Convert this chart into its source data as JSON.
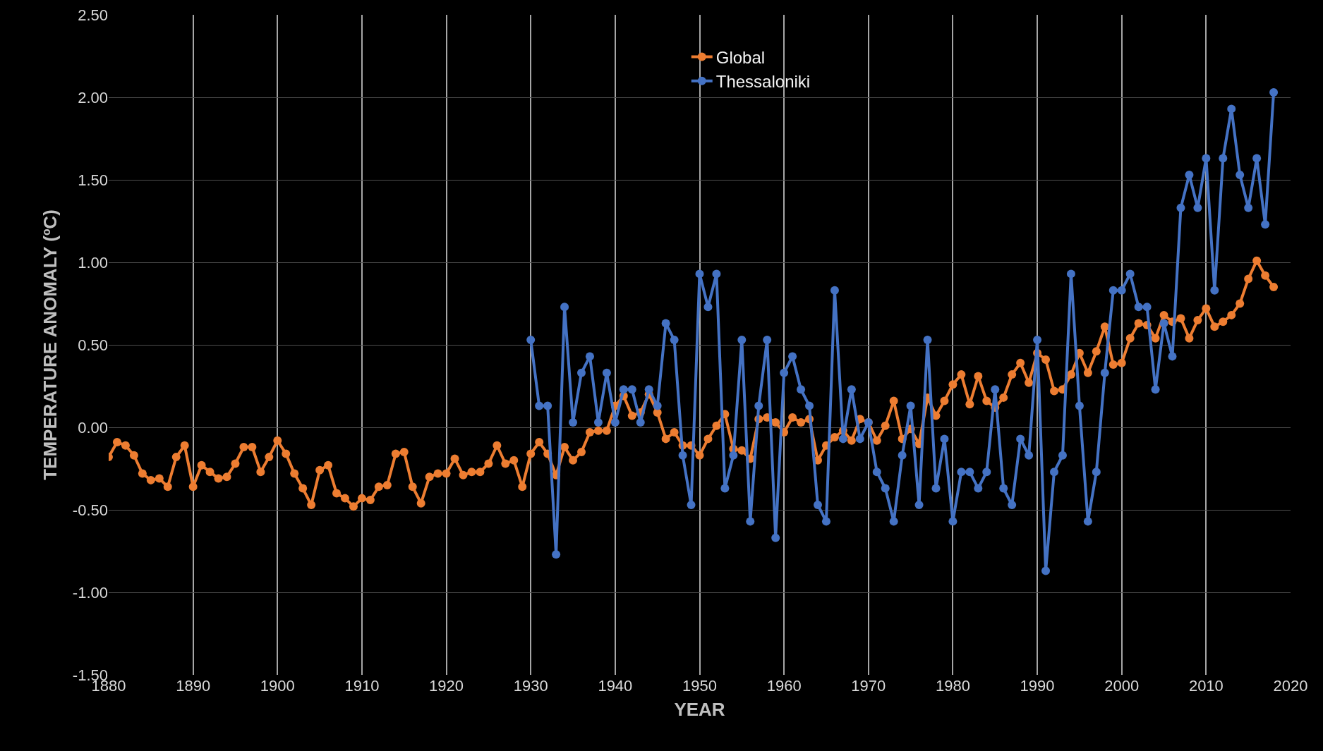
{
  "chart_data": {
    "type": "line",
    "xlabel": "YEAR",
    "ylabel": "TEMPERATURE ANOMALY (ºC)",
    "xlim": [
      1880,
      2020
    ],
    "xticks": [
      1880,
      1890,
      1900,
      1910,
      1920,
      1930,
      1940,
      1950,
      1960,
      1970,
      1980,
      1990,
      2000,
      2010,
      2020
    ],
    "ylim": [
      -1.5,
      2.5
    ],
    "yticks": [
      {
        "value": -1.5,
        "label": "-1.50"
      },
      {
        "value": -1,
        "label": "-1.00"
      },
      {
        "value": -0.5,
        "label": "-0.50"
      },
      {
        "value": 0,
        "label": "0.00"
      },
      {
        "value": 0.5,
        "label": "0.50"
      },
      {
        "value": 1,
        "label": "1.00"
      },
      {
        "value": 1.5,
        "label": "1.50"
      },
      {
        "value": 2,
        "label": "2.00"
      },
      {
        "value": 2.5,
        "label": "2.50"
      }
    ],
    "grid": true,
    "legend": "top",
    "marker": "circle",
    "line_style": "solid",
    "series": [
      {
        "name": "Global",
        "color": "#ed7d31",
        "x": [
          1880,
          1881,
          1882,
          1883,
          1884,
          1885,
          1886,
          1887,
          1888,
          1889,
          1890,
          1891,
          1892,
          1893,
          1894,
          1895,
          1896,
          1897,
          1898,
          1899,
          1900,
          1901,
          1902,
          1903,
          1904,
          1905,
          1906,
          1907,
          1908,
          1909,
          1910,
          1911,
          1912,
          1913,
          1914,
          1915,
          1916,
          1917,
          1918,
          1919,
          1920,
          1921,
          1922,
          1923,
          1924,
          1925,
          1926,
          1927,
          1928,
          1929,
          1930,
          1931,
          1932,
          1933,
          1934,
          1935,
          1936,
          1937,
          1938,
          1939,
          1940,
          1941,
          1942,
          1943,
          1944,
          1945,
          1946,
          1947,
          1948,
          1949,
          1950,
          1951,
          1952,
          1953,
          1954,
          1955,
          1956,
          1957,
          1958,
          1959,
          1960,
          1961,
          1962,
          1963,
          1964,
          1965,
          1966,
          1967,
          1968,
          1969,
          1970,
          1971,
          1972,
          1973,
          1974,
          1975,
          1976,
          1977,
          1978,
          1979,
          1980,
          1981,
          1982,
          1983,
          1984,
          1985,
          1986,
          1987,
          1988,
          1989,
          1990,
          1991,
          1992,
          1993,
          1994,
          1995,
          1996,
          1997,
          1998,
          1999,
          2000,
          2001,
          2002,
          2003,
          2004,
          2005,
          2006,
          2007,
          2008,
          2009,
          2010,
          2011,
          2012,
          2013,
          2014,
          2015,
          2016,
          2017,
          2018
        ],
        "values": [
          -0.18,
          -0.09,
          -0.11,
          -0.17,
          -0.28,
          -0.32,
          -0.31,
          -0.36,
          -0.18,
          -0.11,
          -0.36,
          -0.23,
          -0.27,
          -0.31,
          -0.3,
          -0.22,
          -0.12,
          -0.12,
          -0.27,
          -0.18,
          -0.08,
          -0.16,
          -0.28,
          -0.37,
          -0.47,
          -0.26,
          -0.23,
          -0.4,
          -0.43,
          -0.48,
          -0.43,
          -0.44,
          -0.36,
          -0.35,
          -0.16,
          -0.15,
          -0.36,
          -0.46,
          -0.3,
          -0.28,
          -0.28,
          -0.19,
          -0.29,
          -0.27,
          -0.27,
          -0.22,
          -0.11,
          -0.22,
          -0.2,
          -0.36,
          -0.16,
          -0.09,
          -0.16,
          -0.29,
          -0.12,
          -0.2,
          -0.15,
          -0.03,
          -0.02,
          -0.02,
          0.13,
          0.19,
          0.07,
          0.09,
          0.2,
          0.09,
          -0.07,
          -0.03,
          -0.11,
          -0.11,
          -0.17,
          -0.07,
          0.01,
          0.08,
          -0.13,
          -0.14,
          -0.19,
          0.05,
          0.06,
          0.03,
          -0.03,
          0.06,
          0.03,
          0.05,
          -0.2,
          -0.11,
          -0.06,
          -0.02,
          -0.08,
          0.05,
          0.03,
          -0.08,
          0.01,
          0.16,
          -0.07,
          -0.01,
          -0.1,
          0.18,
          0.07,
          0.16,
          0.26,
          0.32,
          0.14,
          0.31,
          0.16,
          0.12,
          0.18,
          0.32,
          0.39,
          0.27,
          0.45,
          0.41,
          0.22,
          0.23,
          0.32,
          0.45,
          0.33,
          0.46,
          0.61,
          0.38,
          0.39,
          0.54,
          0.63,
          0.62,
          0.54,
          0.68,
          0.64,
          0.66,
          0.54,
          0.65,
          0.72,
          0.61,
          0.64,
          0.68,
          0.75,
          0.9,
          1.01,
          0.92,
          0.85
        ]
      },
      {
        "name": "Thessaloniki",
        "color": "#4472c4",
        "x": [
          1930,
          1931,
          1932,
          1933,
          1934,
          1935,
          1936,
          1937,
          1938,
          1939,
          1940,
          1941,
          1942,
          1943,
          1944,
          1945,
          1946,
          1947,
          1948,
          1949,
          1950,
          1951,
          1952,
          1953,
          1954,
          1955,
          1956,
          1957,
          1958,
          1959,
          1960,
          1961,
          1962,
          1963,
          1964,
          1965,
          1966,
          1967,
          1968,
          1969,
          1970,
          1971,
          1972,
          1973,
          1974,
          1975,
          1976,
          1977,
          1978,
          1979,
          1980,
          1981,
          1982,
          1983,
          1984,
          1985,
          1986,
          1987,
          1988,
          1989,
          1990,
          1991,
          1992,
          1993,
          1994,
          1995,
          1996,
          1997,
          1998,
          1999,
          2000,
          2001,
          2002,
          2003,
          2004,
          2005,
          2006,
          2007,
          2008,
          2009,
          2010,
          2011,
          2012,
          2013,
          2014,
          2015,
          2016,
          2017,
          2018
        ],
        "values": [
          0.53,
          0.13,
          0.13,
          -0.77,
          0.73,
          0.03,
          0.33,
          0.43,
          0.03,
          0.33,
          0.03,
          0.23,
          0.23,
          0.03,
          0.23,
          0.13,
          0.63,
          0.53,
          -0.17,
          -0.47,
          0.93,
          0.73,
          0.93,
          -0.37,
          -0.17,
          0.53,
          -0.57,
          0.13,
          0.53,
          -0.67,
          0.33,
          0.43,
          0.23,
          0.13,
          -0.47,
          -0.57,
          0.83,
          -0.07,
          0.23,
          -0.07,
          0.03,
          -0.27,
          -0.37,
          -0.57,
          -0.17,
          0.13,
          -0.47,
          0.53,
          -0.37,
          -0.07,
          -0.57,
          -0.27,
          -0.27,
          -0.37,
          -0.27,
          0.23,
          -0.37,
          -0.47,
          -0.07,
          -0.17,
          0.53,
          -0.87,
          -0.27,
          -0.17,
          0.93,
          0.13,
          -0.57,
          -0.27,
          0.33,
          0.83,
          0.83,
          0.93,
          0.73,
          0.73,
          0.23,
          0.63,
          0.43,
          1.33,
          1.53,
          1.33,
          1.63,
          0.83,
          1.63,
          1.93,
          1.53,
          1.33,
          1.63,
          1.23,
          2.03
        ]
      }
    ]
  }
}
